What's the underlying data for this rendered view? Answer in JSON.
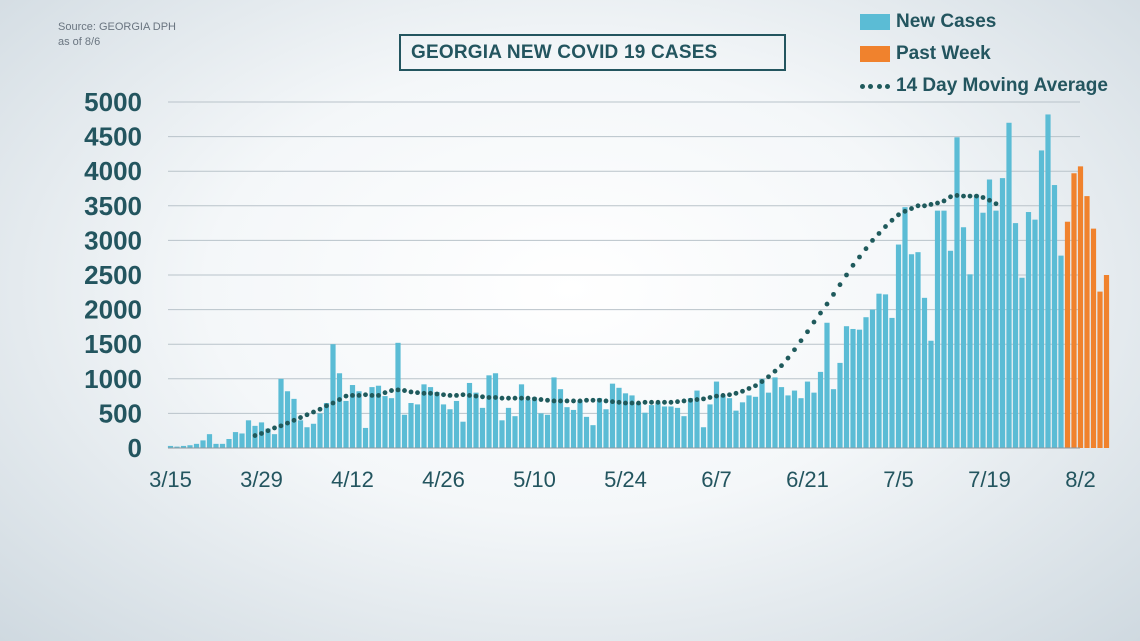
{
  "source": {
    "line1": "Source: GEORGIA DPH",
    "line2": "as of 8/6"
  },
  "title": "GEORGIA NEW COVID 19 CASES",
  "legend": {
    "new_cases": "New Cases",
    "past_week": "Past Week",
    "moving_average": "14 Day Moving Average"
  },
  "colors": {
    "new_cases": "#5bbcd5",
    "past_week": "#f0822d",
    "moving_average": "#1f5a5c",
    "axis_text": "#23555f"
  },
  "chart_data": {
    "type": "bar",
    "title": "GEORGIA NEW COVID 19 CASES",
    "xlabel": "",
    "ylabel": "",
    "ylim": [
      0,
      5000
    ],
    "yticks": [
      0,
      500,
      1000,
      1500,
      2000,
      2500,
      3000,
      3500,
      4000,
      4500,
      5000
    ],
    "xticks": [
      "3/15",
      "3/29",
      "4/12",
      "4/26",
      "5/10",
      "5/24",
      "6/7",
      "6/21",
      "7/5",
      "7/19",
      "8/2"
    ],
    "grid": true,
    "legend_position": "top-right",
    "series": [
      {
        "name": "New Cases",
        "values": [
          30,
          20,
          30,
          40,
          60,
          110,
          200,
          60,
          60,
          130,
          230,
          210,
          400,
          320,
          370,
          280,
          200,
          1000,
          820,
          710,
          400,
          300,
          350,
          500,
          650,
          1500,
          1080,
          680,
          910,
          820,
          290,
          880,
          900,
          750,
          720,
          1520,
          480,
          650,
          630,
          920,
          880,
          810,
          630,
          560,
          680,
          380,
          940,
          800,
          580,
          1050,
          1080,
          400,
          580,
          460,
          920,
          700,
          730,
          500,
          480,
          1020,
          850,
          590,
          550,
          690,
          450,
          330,
          720,
          560,
          930,
          870,
          790,
          760,
          650,
          510,
          620,
          650,
          600,
          600,
          580,
          460,
          720,
          830,
          300,
          630,
          960,
          760,
          720,
          540,
          660,
          760,
          740,
          1000,
          800,
          1020,
          880,
          760,
          830,
          720,
          960,
          800,
          1100,
          1810,
          850,
          1230,
          1760,
          1720,
          1710,
          1890,
          2000,
          2230,
          2220,
          1880,
          2940,
          3480,
          2800,
          2830,
          2170,
          1550,
          3430,
          3430,
          2850,
          4490,
          3190,
          2510,
          3660,
          3400,
          3880,
          3430,
          3900,
          4700,
          3250,
          2460,
          3410,
          3300,
          4300,
          4820,
          3800,
          2780,
          2880,
          4210,
          3270,
          3970,
          4070,
          3640,
          3170,
          2260,
          2500
        ]
      },
      {
        "name": "Past Week",
        "start_index": 138,
        "values": [
          3270,
          3970,
          4070,
          3640,
          3170,
          2260,
          2500
        ]
      },
      {
        "name": "14 Day Moving Average",
        "start_index": 13,
        "values": [
          180,
          210,
          250,
          290,
          320,
          360,
          400,
          440,
          480,
          520,
          560,
          610,
          650,
          700,
          750,
          760,
          760,
          770,
          760,
          760,
          800,
          830,
          840,
          830,
          810,
          800,
          790,
          790,
          780,
          770,
          760,
          760,
          770,
          760,
          750,
          740,
          730,
          730,
          720,
          720,
          720,
          720,
          720,
          710,
          700,
          690,
          680,
          680,
          680,
          680,
          680,
          690,
          690,
          690,
          680,
          670,
          660,
          650,
          650,
          650,
          660,
          660,
          660,
          660,
          660,
          670,
          680,
          690,
          700,
          710,
          730,
          750,
          760,
          770,
          790,
          820,
          860,
          900,
          960,
          1030,
          1110,
          1190,
          1300,
          1420,
          1550,
          1680,
          1820,
          1950,
          2080,
          2220,
          2360,
          2500,
          2640,
          2760,
          2880,
          3000,
          3100,
          3200,
          3290,
          3370,
          3420,
          3460,
          3500,
          3500,
          3520,
          3540,
          3570,
          3630,
          3650,
          3640,
          3640,
          3640,
          3620,
          3580,
          3530
        ]
      }
    ]
  }
}
